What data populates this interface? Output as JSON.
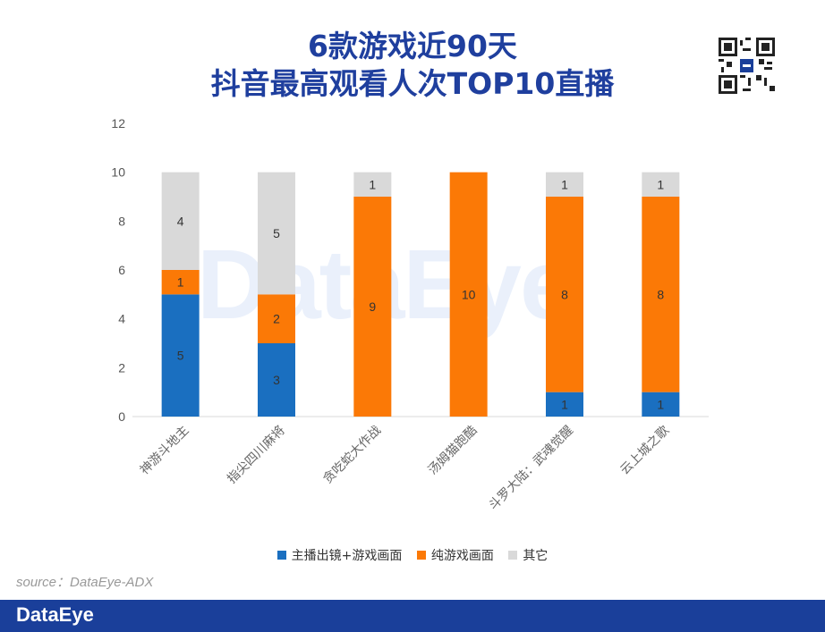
{
  "title": {
    "line1": "6款游戏近90天",
    "line2": "抖音最高观看人次TOP10直播"
  },
  "watermark": "DataEye",
  "source": "source：DataEye-ADX",
  "footer_brand": "DataEye",
  "colors": {
    "title": "#1f3f9e",
    "blue": "#1a6fc0",
    "orange": "#fb7906",
    "gray": "#d9d9d9",
    "footer": "#1a3f9a"
  },
  "chart_data": {
    "type": "bar",
    "stacked": true,
    "categories": [
      "神游斗地主",
      "指尖四川麻将",
      "贪吃蛇大作战",
      "汤姆猫跑酷",
      "斗罗大陆：武魂觉醒",
      "云上城之歌"
    ],
    "series": [
      {
        "name": "主播出镜+游戏画面",
        "color": "#1a6fc0",
        "values": [
          5,
          3,
          0,
          0,
          1,
          1
        ]
      },
      {
        "name": "纯游戏画面",
        "color": "#fb7906",
        "values": [
          1,
          2,
          9,
          10,
          8,
          8
        ]
      },
      {
        "name": "其它",
        "color": "#d9d9d9",
        "values": [
          4,
          5,
          1,
          0,
          1,
          1
        ]
      }
    ],
    "ylim": [
      0,
      12
    ],
    "yticks": [
      0,
      2,
      4,
      6,
      8,
      10,
      12
    ],
    "grid": false,
    "legend_position": "bottom-center",
    "xlabel": "",
    "ylabel": ""
  }
}
